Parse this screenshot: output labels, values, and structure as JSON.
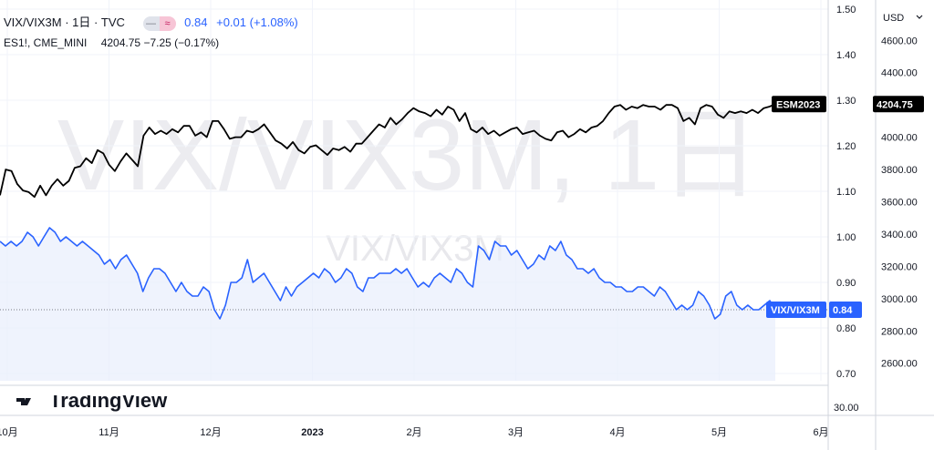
{
  "legend": {
    "symbol_title": "VIX/VIX3M · 1日 · TVC",
    "symbol_value": "0.84",
    "symbol_change": "+0.01 (+1.08%)",
    "compare_title": "ES1!, CME_MINI",
    "compare_value": "4204.75",
    "compare_change": "−7.25 (−0.17%)",
    "toggle_left": "—",
    "toggle_right": "≈"
  },
  "watermark": {
    "main": "VIX/VIX3M, 1日",
    "sub": "VIX/VIX3M"
  },
  "brand": "TradingView",
  "currency_label": "USD",
  "sub_pane_label": "30.00",
  "colors": {
    "ratio_line": "#2962ff",
    "futures_line": "#000000",
    "ratio_fill": "#e8eefc"
  },
  "chart_data": {
    "type": "line",
    "x_axis_labels": [
      "10月",
      "11月",
      "12月",
      "2023",
      "2月",
      "3月",
      "4月",
      "5月",
      "6月"
    ],
    "left_axis": {
      "ticks": [
        "1.50",
        "1.40",
        "1.30",
        "1.20",
        "1.10",
        "1.00",
        "0.90",
        "0.80",
        "0.70"
      ],
      "range": [
        0.68,
        1.52
      ]
    },
    "right_axis": {
      "ticks": [
        "4600.00",
        "4400.00",
        "4200.00",
        "4000.00",
        "3800.00",
        "3600.00",
        "3400.00",
        "3200.00",
        "3000.00",
        "2800.00",
        "2600.00"
      ],
      "range": [
        2480,
        4850
      ]
    },
    "series": [
      {
        "name": "VIX/VIX3M",
        "axis": "left",
        "last_label": "0.84",
        "values": [
          0.99,
          0.98,
          0.99,
          0.98,
          0.99,
          1.01,
          1.0,
          0.98,
          1.0,
          1.02,
          1.01,
          0.99,
          1.0,
          0.99,
          0.98,
          0.99,
          0.98,
          0.97,
          0.96,
          0.94,
          0.95,
          0.93,
          0.95,
          0.96,
          0.94,
          0.92,
          0.88,
          0.91,
          0.93,
          0.93,
          0.92,
          0.9,
          0.88,
          0.9,
          0.88,
          0.87,
          0.87,
          0.89,
          0.88,
          0.84,
          0.82,
          0.85,
          0.9,
          0.9,
          0.91,
          0.95,
          0.9,
          0.91,
          0.92,
          0.9,
          0.88,
          0.86,
          0.89,
          0.87,
          0.89,
          0.9,
          0.91,
          0.92,
          0.91,
          0.93,
          0.92,
          0.9,
          0.91,
          0.93,
          0.92,
          0.89,
          0.88,
          0.91,
          0.91,
          0.92,
          0.92,
          0.92,
          0.93,
          0.92,
          0.93,
          0.91,
          0.89,
          0.9,
          0.89,
          0.91,
          0.92,
          0.91,
          0.9,
          0.93,
          0.92,
          0.9,
          0.89,
          0.98,
          0.97,
          0.95,
          0.99,
          0.98,
          0.98,
          0.96,
          0.97,
          0.95,
          0.93,
          0.94,
          0.96,
          0.95,
          0.98,
          0.97,
          0.99,
          0.96,
          0.95,
          0.93,
          0.93,
          0.92,
          0.93,
          0.91,
          0.9,
          0.9,
          0.89,
          0.89,
          0.88,
          0.88,
          0.89,
          0.89,
          0.88,
          0.87,
          0.89,
          0.88,
          0.86,
          0.84,
          0.85,
          0.84,
          0.85,
          0.88,
          0.87,
          0.85,
          0.82,
          0.83,
          0.87,
          0.88,
          0.85,
          0.84,
          0.85,
          0.84,
          0.84,
          0.85,
          0.86,
          0.84
        ]
      },
      {
        "name": "ESM2023",
        "axis": "right",
        "last_label": "4204.75",
        "values": [
          3640,
          3800,
          3790,
          3710,
          3670,
          3660,
          3630,
          3700,
          3640,
          3700,
          3740,
          3700,
          3730,
          3810,
          3820,
          3870,
          3840,
          3920,
          3900,
          3830,
          3790,
          3850,
          3900,
          3860,
          3820,
          4010,
          4060,
          4020,
          4040,
          4020,
          4050,
          4030,
          4070,
          4070,
          4010,
          4030,
          4000,
          4100,
          4100,
          4050,
          3990,
          4000,
          4000,
          4040,
          4030,
          4050,
          4080,
          4030,
          3980,
          3960,
          3930,
          3970,
          3920,
          3900,
          3940,
          3950,
          3920,
          3890,
          3930,
          3920,
          3940,
          3910,
          3960,
          3960,
          4000,
          4040,
          4080,
          4060,
          4120,
          4080,
          4110,
          4150,
          4180,
          4160,
          4150,
          4130,
          4170,
          4140,
          4190,
          4170,
          4100,
          4150,
          4050,
          4030,
          4060,
          4020,
          4040,
          4010,
          4030,
          4050,
          4060,
          4020,
          4030,
          4040,
          4010,
          3990,
          3980,
          4030,
          4040,
          4000,
          4020,
          4050,
          4030,
          4060,
          4070,
          4100,
          4150,
          4190,
          4200,
          4170,
          4190,
          4180,
          4200,
          4190,
          4190,
          4170,
          4200,
          4200,
          4180,
          4100,
          4120,
          4080,
          4180,
          4200,
          4190,
          4140,
          4120,
          4160,
          4150,
          4160,
          4150,
          4170,
          4150,
          4180,
          4190,
          4205
        ]
      }
    ]
  }
}
